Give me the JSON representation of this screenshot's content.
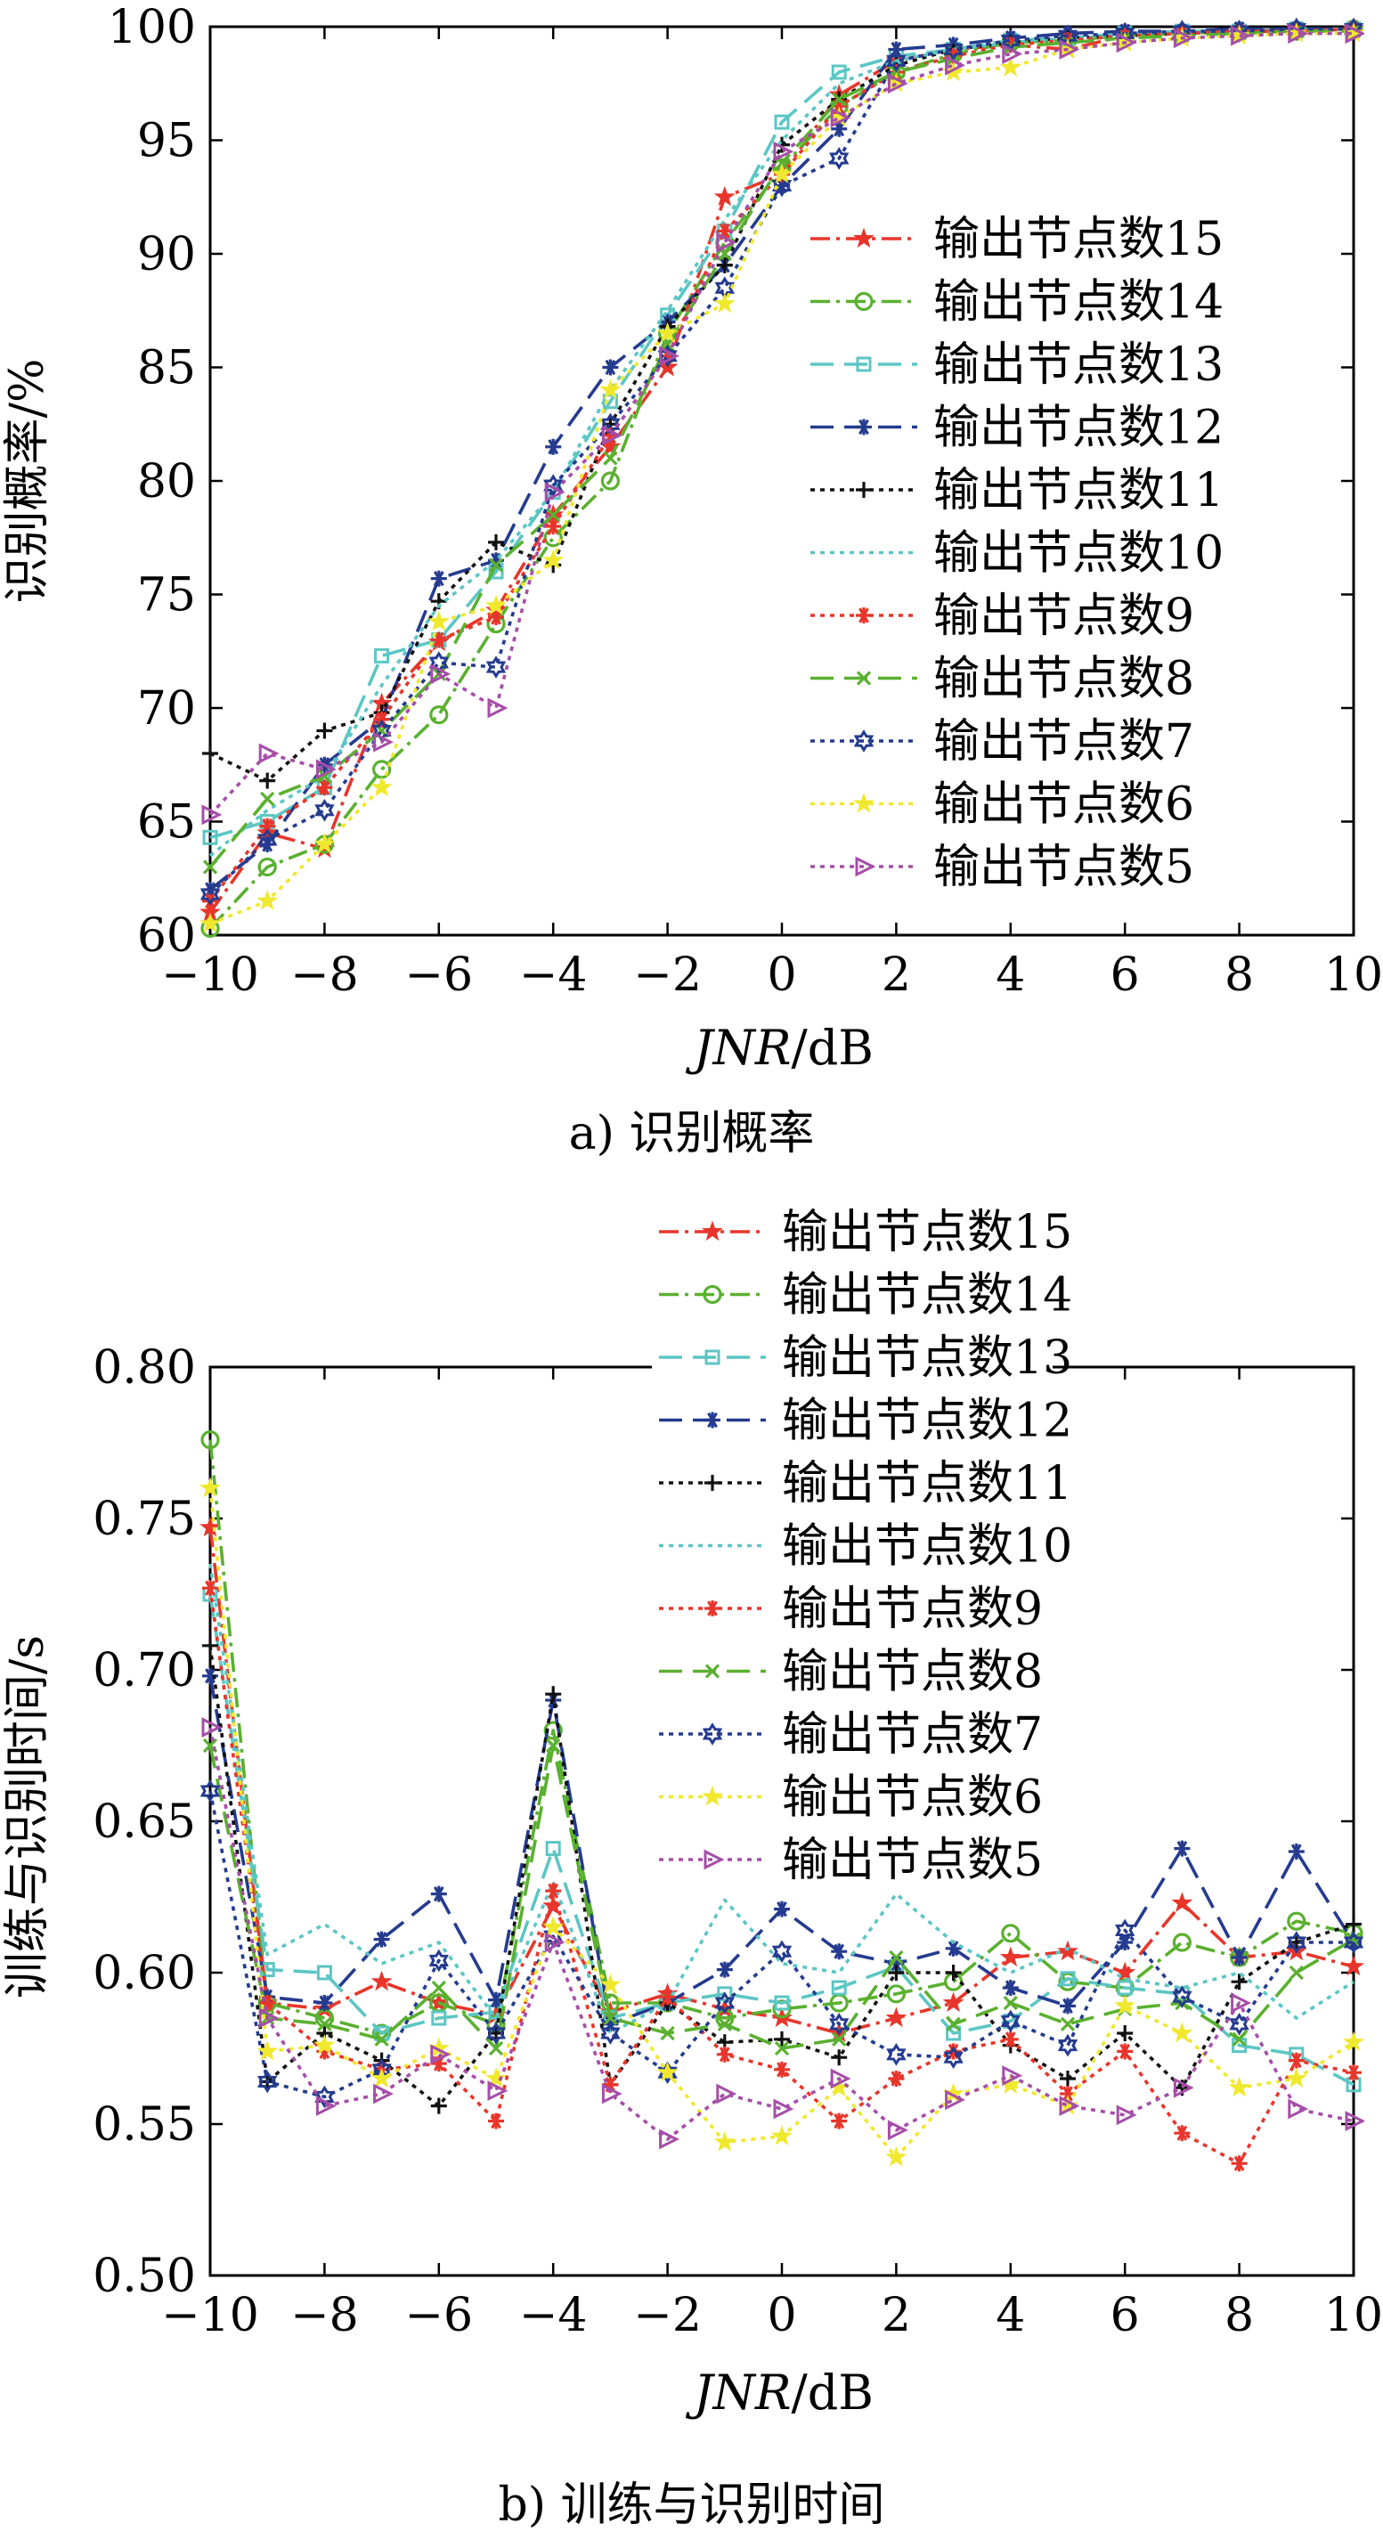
{
  "captions": [
    "a) 识别概率",
    "b) 训练与识别时间"
  ],
  "chart_data": [
    {
      "type": "line",
      "caption": "a) 识别概率",
      "xlabel_italic": "JNR",
      "xlabel_unit": "/dB",
      "ylabel": "识别概率/%",
      "xlim": [
        -10,
        10
      ],
      "ylim": [
        60,
        100
      ],
      "xticks": [
        -10,
        -8,
        -6,
        -4,
        -2,
        0,
        2,
        4,
        6,
        8,
        10
      ],
      "yticks": [
        60,
        65,
        70,
        75,
        80,
        85,
        90,
        95,
        100
      ],
      "x": [
        -10,
        -9,
        -8,
        -7,
        -6,
        -5,
        -4,
        -3,
        -2,
        -1,
        0,
        1,
        2,
        3,
        4,
        5,
        6,
        7,
        8,
        9,
        10
      ],
      "legend_position": "right",
      "series": [
        {
          "name": "输出节点数15",
          "color": "#e8352b",
          "dash": "dashdot",
          "marker": "star",
          "values": [
            61.0,
            64.5,
            63.8,
            70.2,
            72.9,
            74.3,
            78.5,
            81.5,
            85.0,
            92.5,
            93.5,
            97.0,
            98.5,
            99.0,
            99.2,
            99.0,
            99.6,
            99.7,
            99.8,
            99.9,
            99.9
          ]
        },
        {
          "name": "输出节点数14",
          "color": "#5ab02f",
          "dash": "dashdot",
          "marker": "circle",
          "values": [
            60.3,
            63.0,
            64.0,
            67.3,
            69.7,
            73.7,
            77.5,
            80.0,
            86.5,
            90.5,
            93.8,
            96.5,
            98.0,
            98.8,
            99.3,
            99.4,
            99.6,
            99.7,
            99.8,
            99.8,
            99.9
          ]
        },
        {
          "name": "输出节点数13",
          "color": "#5cc6c4",
          "dash": "longdash",
          "marker": "square",
          "values": [
            64.3,
            65.0,
            66.5,
            72.3,
            73.0,
            76.0,
            79.5,
            83.5,
            87.3,
            91.0,
            95.8,
            98.0,
            98.7,
            99.0,
            99.4,
            99.5,
            99.7,
            99.8,
            99.8,
            99.9,
            99.9
          ]
        },
        {
          "name": "输出节点数12",
          "color": "#253b8f",
          "dash": "longdash",
          "marker": "asterisk",
          "values": [
            62.0,
            64.0,
            67.5,
            69.5,
            75.7,
            76.5,
            81.5,
            85.0,
            87.0,
            89.5,
            93.0,
            95.5,
            99.0,
            99.2,
            99.5,
            99.7,
            99.8,
            99.8,
            99.9,
            99.9,
            99.9
          ]
        },
        {
          "name": "输出节点数11",
          "color": "#111111",
          "dash": "dot",
          "marker": "plus",
          "values": [
            68.0,
            66.8,
            69.0,
            69.8,
            74.7,
            77.3,
            76.3,
            82.5,
            86.8,
            89.5,
            94.8,
            96.8,
            98.3,
            99.0,
            99.3,
            99.5,
            99.6,
            99.7,
            99.8,
            99.8,
            99.9
          ]
        },
        {
          "name": "输出节点数10",
          "color": "#5cc6c4",
          "dash": "dot",
          "marker": "none",
          "values": [
            63.5,
            65.5,
            67.0,
            71.0,
            74.5,
            76.5,
            79.5,
            84.0,
            87.5,
            91.5,
            95.0,
            97.5,
            98.5,
            99.0,
            99.3,
            99.5,
            99.6,
            99.7,
            99.8,
            99.8,
            99.9
          ]
        },
        {
          "name": "输出节点数9",
          "color": "#e8352b",
          "dash": "dot",
          "marker": "asterisk",
          "values": [
            61.5,
            64.8,
            66.5,
            69.5,
            73.0,
            74.0,
            78.0,
            82.0,
            85.5,
            91.0,
            93.5,
            96.5,
            98.0,
            98.7,
            99.2,
            99.4,
            99.6,
            99.7,
            99.8,
            99.8,
            99.9
          ]
        },
        {
          "name": "输出节点数8",
          "color": "#5ab02f",
          "dash": "longdash",
          "marker": "x",
          "values": [
            63.0,
            66.0,
            67.0,
            69.0,
            71.5,
            76.3,
            78.5,
            81.0,
            86.0,
            90.0,
            94.0,
            96.8,
            98.0,
            98.6,
            99.1,
            99.3,
            99.5,
            99.6,
            99.7,
            99.8,
            99.8
          ]
        },
        {
          "name": "输出节点数7",
          "color": "#253b8f",
          "dash": "dot",
          "marker": "hexagram",
          "values": [
            61.8,
            64.2,
            65.5,
            69.0,
            72.0,
            71.8,
            79.8,
            82.5,
            85.5,
            88.5,
            93.0,
            94.2,
            98.5,
            99.0,
            99.4,
            99.6,
            99.7,
            99.8,
            99.8,
            99.9,
            99.9
          ]
        },
        {
          "name": "输出节点数6",
          "color": "#f0e82e",
          "dash": "dot",
          "marker": "star",
          "values": [
            60.5,
            61.5,
            64.0,
            66.5,
            73.8,
            74.5,
            76.5,
            84.0,
            86.5,
            87.8,
            93.5,
            96.0,
            97.5,
            98.0,
            98.2,
            99.0,
            99.3,
            99.5,
            99.6,
            99.7,
            99.7
          ]
        },
        {
          "name": "输出节点数5",
          "color": "#a54ea8",
          "dash": "dot",
          "marker": "triangle-right",
          "values": [
            65.3,
            68.0,
            67.3,
            68.5,
            71.5,
            70.0,
            79.5,
            82.0,
            85.5,
            90.5,
            94.5,
            96.0,
            97.5,
            98.3,
            98.8,
            99.0,
            99.3,
            99.5,
            99.6,
            99.7,
            99.7
          ]
        }
      ]
    },
    {
      "type": "line",
      "caption": "b) 训练与识别时间",
      "xlabel_italic": "JNR",
      "xlabel_unit": "/dB",
      "ylabel": "训练与识别时间/s",
      "xlim": [
        -10,
        10
      ],
      "ylim": [
        0.5,
        0.8
      ],
      "xticks": [
        -10,
        -8,
        -6,
        -4,
        -2,
        0,
        2,
        4,
        6,
        8,
        10
      ],
      "yticks": [
        "0.50",
        "0.55",
        "0.60",
        "0.65",
        "0.70",
        "0.75",
        "0.80"
      ],
      "x": [
        -10,
        -9,
        -8,
        -7,
        -6,
        -5,
        -4,
        -3,
        -2,
        -1,
        0,
        1,
        2,
        3,
        4,
        5,
        6,
        7,
        8,
        9,
        10
      ],
      "legend_position": "top",
      "series": [
        {
          "name": "输出节点数15",
          "color": "#e8352b",
          "dash": "dashdot",
          "marker": "star",
          "values": [
            0.747,
            0.59,
            0.588,
            0.597,
            0.59,
            0.586,
            0.622,
            0.587,
            0.593,
            0.588,
            0.585,
            0.58,
            0.585,
            0.59,
            0.605,
            0.607,
            0.6,
            0.623,
            0.605,
            0.607,
            0.602
          ]
        },
        {
          "name": "输出节点数14",
          "color": "#5ab02f",
          "dash": "dashdot",
          "marker": "circle",
          "values": [
            0.776,
            0.59,
            0.585,
            0.58,
            0.59,
            0.583,
            0.68,
            0.59,
            0.59,
            0.585,
            0.588,
            0.59,
            0.593,
            0.597,
            0.613,
            0.597,
            0.595,
            0.61,
            0.605,
            0.617,
            0.613
          ]
        },
        {
          "name": "输出节点数13",
          "color": "#5cc6c4",
          "dash": "longdash",
          "marker": "square",
          "values": [
            0.725,
            0.601,
            0.6,
            0.58,
            0.585,
            0.587,
            0.641,
            0.585,
            0.59,
            0.593,
            0.59,
            0.595,
            0.602,
            0.58,
            0.584,
            0.598,
            0.595,
            0.593,
            0.576,
            0.573,
            0.563
          ]
        },
        {
          "name": "输出节点数12",
          "color": "#253b8f",
          "dash": "longdash",
          "marker": "asterisk",
          "values": [
            0.698,
            0.592,
            0.59,
            0.611,
            0.626,
            0.591,
            0.69,
            0.583,
            0.59,
            0.601,
            0.621,
            0.607,
            0.603,
            0.608,
            0.595,
            0.589,
            0.61,
            0.641,
            0.605,
            0.64,
            0.61
          ]
        },
        {
          "name": "输出节点数11",
          "color": "#111111",
          "dash": "dot",
          "marker": "plus",
          "values": [
            0.708,
            0.564,
            0.58,
            0.571,
            0.556,
            0.58,
            0.692,
            0.563,
            0.59,
            0.577,
            0.578,
            0.572,
            0.6,
            0.6,
            0.576,
            0.565,
            0.58,
            0.562,
            0.597,
            0.61,
            0.616
          ]
        },
        {
          "name": "输出节点数10",
          "color": "#5cc6c4",
          "dash": "dot",
          "marker": "none",
          "values": [
            0.735,
            0.606,
            0.616,
            0.603,
            0.61,
            0.585,
            0.63,
            0.58,
            0.59,
            0.624,
            0.603,
            0.6,
            0.626,
            0.61,
            0.6,
            0.608,
            0.598,
            0.595,
            0.6,
            0.585,
            0.597
          ]
        },
        {
          "name": "输出节点数9",
          "color": "#e8352b",
          "dash": "dot",
          "marker": "asterisk",
          "values": [
            0.727,
            0.59,
            0.574,
            0.568,
            0.57,
            0.551,
            0.627,
            0.563,
            0.592,
            0.573,
            0.568,
            0.551,
            0.565,
            0.574,
            0.578,
            0.56,
            0.574,
            0.547,
            0.537,
            0.571,
            0.567
          ]
        },
        {
          "name": "输出节点数8",
          "color": "#5ab02f",
          "dash": "longdash",
          "marker": "x",
          "values": [
            0.675,
            0.585,
            0.583,
            0.578,
            0.595,
            0.575,
            0.675,
            0.585,
            0.58,
            0.583,
            0.575,
            0.578,
            0.605,
            0.583,
            0.59,
            0.583,
            0.588,
            0.59,
            0.578,
            0.6,
            0.611
          ]
        },
        {
          "name": "输出节点数7",
          "color": "#253b8f",
          "dash": "dot",
          "marker": "hexagram",
          "values": [
            0.66,
            0.564,
            0.559,
            0.568,
            0.604,
            0.58,
            0.612,
            0.58,
            0.567,
            0.59,
            0.607,
            0.583,
            0.573,
            0.572,
            0.584,
            0.576,
            0.614,
            0.592,
            0.583,
            0.61,
            0.61
          ]
        },
        {
          "name": "输出节点数6",
          "color": "#f0e82e",
          "dash": "dot",
          "marker": "star",
          "values": [
            0.76,
            0.574,
            0.576,
            0.565,
            0.575,
            0.565,
            0.615,
            0.596,
            0.567,
            0.544,
            0.546,
            0.562,
            0.539,
            0.56,
            0.563,
            0.556,
            0.589,
            0.58,
            0.562,
            0.565,
            0.577
          ]
        },
        {
          "name": "输出节点数5",
          "color": "#a54ea8",
          "dash": "dot",
          "marker": "triangle-right",
          "values": [
            0.681,
            0.585,
            0.556,
            0.56,
            0.573,
            0.561,
            0.61,
            0.56,
            0.545,
            0.56,
            0.555,
            0.565,
            0.548,
            0.558,
            0.566,
            0.556,
            0.553,
            0.562,
            0.59,
            0.555,
            0.551
          ]
        }
      ]
    }
  ]
}
